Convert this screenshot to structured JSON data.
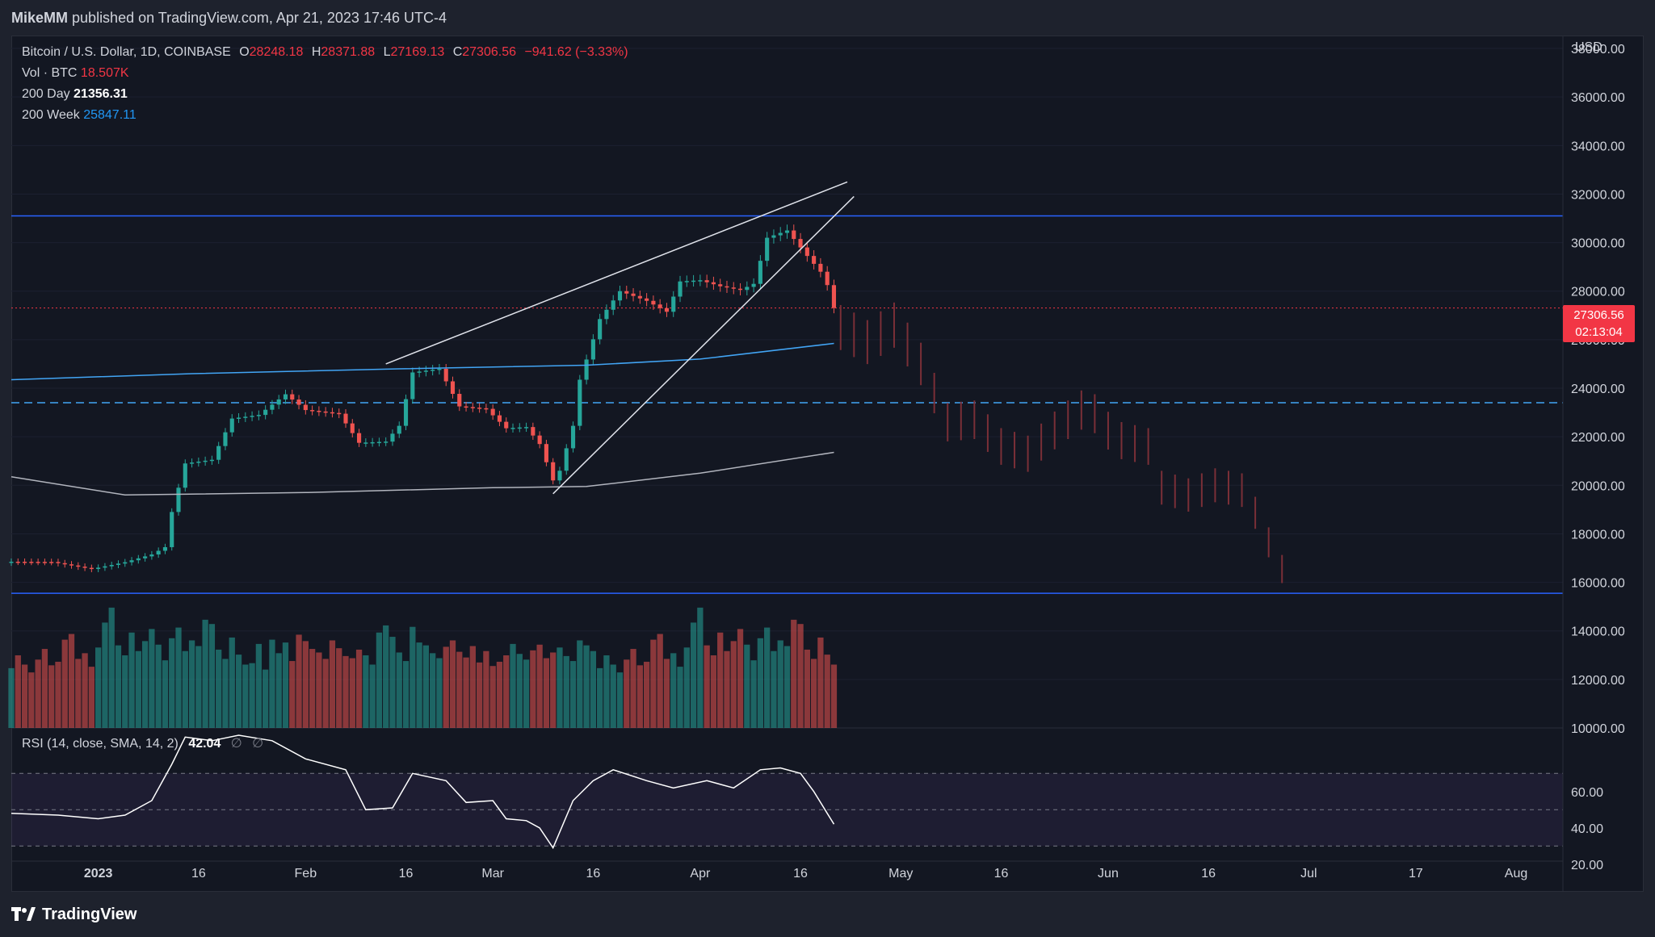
{
  "header": {
    "author": "MikeMM",
    "published_text": "published on TradingView.com, Apr 21, 2023 17:46 UTC-4"
  },
  "legend": {
    "symbol": "Bitcoin / U.S. Dollar, 1D, COINBASE",
    "open_label": "O",
    "open": "28248.18",
    "high_label": "H",
    "high": "28371.88",
    "low_label": "L",
    "low": "27169.13",
    "close_label": "C",
    "close": "27306.56",
    "change": "−941.62 (−3.33%)",
    "vol_label": "Vol · BTC",
    "vol_value": "18.507K",
    "ma200d_label": "200 Day",
    "ma200d_value": "21356.31",
    "ma200w_label": "200 Week",
    "ma200w_value": "25847.11"
  },
  "rsi_legend": {
    "label": "RSI (14, close, SMA, 14, 2)",
    "value": "42.04",
    "sym1": "∅",
    "sym2": "∅"
  },
  "price_axis": {
    "currency": "USD",
    "current_price": "27306.56",
    "countdown": "02:13:04"
  },
  "footer": {
    "brand": "TradingView"
  },
  "colors": {
    "up": "#26a69a",
    "down": "#ef5350",
    "background": "#131722",
    "level_line": "#2962ff",
    "ma200w": "#42a5f5",
    "ma200d": "#b2b5be",
    "price_tag": "#f23645"
  },
  "chart_data": {
    "type": "candlestick",
    "title": "Bitcoin / U.S. Dollar, 1D, COINBASE",
    "y_axis": {
      "ticks": [
        10000,
        12000,
        14000,
        16000,
        18000,
        20000,
        22000,
        24000,
        26000,
        28000,
        30000,
        32000,
        34000,
        36000,
        38000
      ],
      "tick_labels": [
        "10000.00",
        "12000.00",
        "14000.00",
        "16000.00",
        "18000.00",
        "20000.00",
        "22000.00",
        "24000.00",
        "26000.00",
        "28000.00",
        "30000.00",
        "32000.00",
        "34000.00",
        "36000.00",
        "38000.00"
      ],
      "range": [
        10000,
        38500
      ]
    },
    "rsi_axis": {
      "ticks": [
        20,
        40,
        60
      ],
      "tick_labels": [
        "20.00",
        "40.00",
        "60.00"
      ],
      "bands": [
        30,
        50,
        70
      ]
    },
    "x_axis": {
      "start_date": "2022-12-19",
      "end_date": "2023-08-08",
      "labels": [
        {
          "date": "2023-01-01",
          "text": "2023",
          "bold": true
        },
        {
          "date": "2023-01-16",
          "text": "16"
        },
        {
          "date": "2023-02-01",
          "text": "Feb"
        },
        {
          "date": "2023-02-16",
          "text": "16"
        },
        {
          "date": "2023-03-01",
          "text": "Mar"
        },
        {
          "date": "2023-03-16",
          "text": "16"
        },
        {
          "date": "2023-04-01",
          "text": "Apr"
        },
        {
          "date": "2023-04-16",
          "text": "16"
        },
        {
          "date": "2023-05-01",
          "text": "May"
        },
        {
          "date": "2023-05-16",
          "text": "16"
        },
        {
          "date": "2023-06-01",
          "text": "Jun"
        },
        {
          "date": "2023-06-16",
          "text": "16"
        },
        {
          "date": "2023-07-01",
          "text": "Jul"
        },
        {
          "date": "2023-07-17",
          "text": "17"
        },
        {
          "date": "2023-08-01",
          "text": "Aug"
        }
      ]
    },
    "close_path_points": [
      [
        "2022-12-19",
        16850
      ],
      [
        "2022-12-25",
        16840
      ],
      [
        "2022-12-31",
        16550
      ],
      [
        "2023-01-05",
        16830
      ],
      [
        "2023-01-09",
        17150
      ],
      [
        "2023-01-11",
        17450
      ],
      [
        "2023-01-12",
        18900
      ],
      [
        "2023-01-14",
        20900
      ],
      [
        "2023-01-18",
        21050
      ],
      [
        "2023-01-21",
        22750
      ],
      [
        "2023-01-25",
        22900
      ],
      [
        "2023-01-29",
        23750
      ],
      [
        "2023-02-01",
        23100
      ],
      [
        "2023-02-06",
        22950
      ],
      [
        "2023-02-09",
        21750
      ],
      [
        "2023-02-13",
        21800
      ],
      [
        "2023-02-15",
        22450
      ],
      [
        "2023-02-17",
        24650
      ],
      [
        "2023-02-21",
        24800
      ],
      [
        "2023-02-24",
        23250
      ],
      [
        "2023-02-28",
        23150
      ],
      [
        "2023-03-03",
        22350
      ],
      [
        "2023-03-06",
        22400
      ],
      [
        "2023-03-08",
        21700
      ],
      [
        "2023-03-10",
        20200
      ],
      [
        "2023-03-11",
        20600
      ],
      [
        "2023-03-13",
        22450
      ],
      [
        "2023-03-14",
        24350
      ],
      [
        "2023-03-17",
        26850
      ],
      [
        "2023-03-20",
        28000
      ],
      [
        "2023-03-24",
        27600
      ],
      [
        "2023-03-27",
        27150
      ],
      [
        "2023-03-29",
        28400
      ],
      [
        "2023-04-01",
        28450
      ],
      [
        "2023-04-04",
        28200
      ],
      [
        "2023-04-07",
        28050
      ],
      [
        "2023-04-09",
        28300
      ],
      [
        "2023-04-11",
        30200
      ],
      [
        "2023-04-14",
        30500
      ],
      [
        "2023-04-17",
        29450
      ],
      [
        "2023-04-19",
        28800
      ],
      [
        "2023-04-20",
        28250
      ],
      [
        "2023-04-21",
        27306.56
      ]
    ],
    "ohlc_last": {
      "date": "2023-04-21",
      "open": 28248.18,
      "high": 28371.88,
      "low": 27169.13,
      "close": 27306.56
    },
    "moving_averages": [
      {
        "name": "200 Day",
        "last": 21356.31,
        "points": [
          [
            "2022-12-19",
            20350
          ],
          [
            "2023-01-05",
            19600
          ],
          [
            "2023-02-01",
            19700
          ],
          [
            "2023-03-01",
            19900
          ],
          [
            "2023-03-15",
            19950
          ],
          [
            "2023-04-01",
            20500
          ],
          [
            "2023-04-21",
            21356.31
          ]
        ]
      },
      {
        "name": "200 Week",
        "last": 25847.11,
        "points": [
          [
            "2022-12-19",
            24350
          ],
          [
            "2023-01-15",
            24600
          ],
          [
            "2023-02-15",
            24800
          ],
          [
            "2023-03-15",
            24950
          ],
          [
            "2023-04-01",
            25200
          ],
          [
            "2023-04-21",
            25847.11
          ]
        ]
      }
    ],
    "horizontal_levels": [
      31100,
      23400,
      15550
    ],
    "wedge_lines": [
      {
        "from": [
          "2023-02-13",
          25000
        ],
        "to": [
          "2023-04-23",
          32500
        ]
      },
      {
        "from": [
          "2023-03-10",
          19650
        ],
        "to": [
          "2023-04-24",
          31900
        ]
      }
    ],
    "projection_path_points": [
      [
        "2023-04-22",
        26500
      ],
      [
        "2023-04-26",
        25900
      ],
      [
        "2023-04-30",
        26600
      ],
      [
        "2023-05-04",
        25000
      ],
      [
        "2023-05-08",
        22600
      ],
      [
        "2023-05-12",
        22700
      ],
      [
        "2023-05-16",
        21600
      ],
      [
        "2023-05-20",
        21300
      ],
      [
        "2023-05-25",
        22500
      ],
      [
        "2023-05-29",
        23300
      ],
      [
        "2023-06-02",
        21900
      ],
      [
        "2023-06-07",
        21600
      ],
      [
        "2023-06-09",
        19900
      ],
      [
        "2023-06-13",
        19600
      ],
      [
        "2023-06-17",
        20000
      ],
      [
        "2023-06-21",
        19800
      ],
      [
        "2023-06-24",
        18400
      ],
      [
        "2023-06-26",
        16900
      ],
      [
        "2023-06-28",
        16200
      ]
    ],
    "rsi_points": [
      [
        "2022-12-19",
        48
      ],
      [
        "2022-12-26",
        47
      ],
      [
        "2023-01-01",
        45
      ],
      [
        "2023-01-05",
        47
      ],
      [
        "2023-01-09",
        55
      ],
      [
        "2023-01-12",
        75
      ],
      [
        "2023-01-14",
        90
      ],
      [
        "2023-01-18",
        88
      ],
      [
        "2023-01-22",
        91
      ],
      [
        "2023-01-27",
        88
      ],
      [
        "2023-02-01",
        78
      ],
      [
        "2023-02-07",
        72
      ],
      [
        "2023-02-10",
        50
      ],
      [
        "2023-02-14",
        51
      ],
      [
        "2023-02-17",
        70
      ],
      [
        "2023-02-22",
        66
      ],
      [
        "2023-02-25",
        54
      ],
      [
        "2023-03-01",
        55
      ],
      [
        "2023-03-03",
        45
      ],
      [
        "2023-03-06",
        44
      ],
      [
        "2023-03-08",
        40
      ],
      [
        "2023-03-10",
        29
      ],
      [
        "2023-03-13",
        55
      ],
      [
        "2023-03-16",
        66
      ],
      [
        "2023-03-19",
        72
      ],
      [
        "2023-03-24",
        66
      ],
      [
        "2023-03-28",
        62
      ],
      [
        "2023-04-02",
        66
      ],
      [
        "2023-04-06",
        62
      ],
      [
        "2023-04-10",
        72
      ],
      [
        "2023-04-13",
        73
      ],
      [
        "2023-04-16",
        70
      ],
      [
        "2023-04-18",
        60
      ],
      [
        "2023-04-20",
        48
      ],
      [
        "2023-04-21",
        42.04
      ]
    ],
    "volume_estimates": [
      8.4,
      10.2,
      8.9,
      7.8,
      9.6,
      11.1,
      8.8,
      9.3,
      12.4,
      13.2,
      9.7,
      10.5,
      8.6,
      11.3,
      14.8,
      16.9,
      11.6,
      10.2,
      13.4,
      10.8,
      12.2,
      13.9,
      11.7,
      9.5,
      12.6,
      14.1,
      10.8,
      12.3,
      11.5,
      15.2,
      14.6,
      11.0,
      9.7,
      12.7,
      10.3,
      8.9,
      9.1,
      11.8,
      8.2,
      12.4,
      10.5,
      12.0,
      9.4,
      13.1,
      12.2,
      11.1,
      10.6,
      9.7,
      12.3,
      11.2,
      10.1,
      9.8,
      11.0,
      10.2,
      8.9,
      13.4,
      14.4,
      12.8,
      10.6,
      9.4,
      14.2,
      12.0,
      11.6,
      10.5,
      9.8,
      11.4,
      12.3,
      10.7,
      9.9,
      11.5,
      9.2,
      10.8,
      8.7,
      9.3,
      10.2,
      11.8,
      10.4,
      9.6,
      10.9,
      11.7,
      9.8,
      10.6,
      11.3,
      10.1,
      9.4,
      12.3,
      11.6,
      10.8
    ]
  }
}
